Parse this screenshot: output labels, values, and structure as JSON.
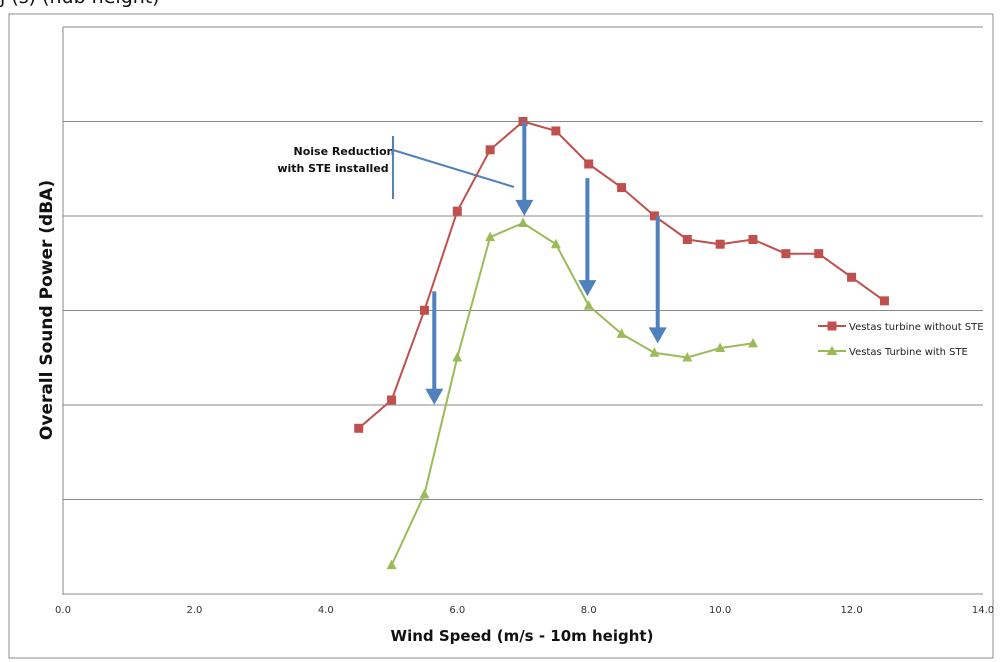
{
  "header_fragment": "j                                                             (s) (hub height)",
  "chart_data": {
    "type": "line",
    "title": "",
    "xlabel": "Wind Speed  (m/s - 10m height)",
    "ylabel": "Overall Sound Power (dBA)",
    "xlim": [
      0,
      14
    ],
    "ylim": [
      0,
      10
    ],
    "x_ticks": [
      "0.0",
      "2.0",
      "4.0",
      "6.0",
      "8.0",
      "10.0",
      "12.0",
      "14.0"
    ],
    "y_tick_labels_shown": false,
    "grid": "horizontal",
    "legend_position": "right",
    "series": [
      {
        "name": "Vestas turbine without STE",
        "color": "#c0504d",
        "marker": "square",
        "x": [
          4.5,
          5.0,
          5.5,
          6.0,
          6.5,
          7.0,
          7.5,
          8.0,
          8.5,
          9.0,
          9.5,
          10.0,
          10.5,
          11.0,
          11.5,
          12.0,
          12.5
        ],
        "y": [
          3.5,
          4.1,
          6.0,
          8.1,
          9.4,
          10.0,
          9.8,
          9.1,
          8.6,
          8.0,
          7.5,
          7.4,
          7.5,
          7.2,
          7.2,
          6.7,
          6.2
        ]
      },
      {
        "name": "Vestas Turbine with STE",
        "color": "#9bbb59",
        "marker": "triangle",
        "x": [
          5.0,
          5.5,
          6.0,
          6.5,
          7.0,
          7.5,
          8.0,
          8.5,
          9.0,
          9.5,
          10.0,
          10.5
        ],
        "y": [
          0.6,
          2.1,
          5.0,
          7.55,
          7.85,
          7.4,
          6.1,
          5.5,
          5.1,
          5.0,
          5.2,
          5.3
        ]
      }
    ],
    "annotation": {
      "lines": [
        "Noise Reduction",
        "with STE installed"
      ]
    },
    "reduction_arrows": [
      {
        "x": 5.65,
        "from_y": 6.4,
        "to_y": 4.0
      },
      {
        "x": 7.02,
        "from_y": 10.0,
        "to_y": 8.0
      },
      {
        "x": 7.98,
        "from_y": 8.8,
        "to_y": 6.3
      },
      {
        "x": 9.05,
        "from_y": 8.0,
        "to_y": 5.3
      }
    ]
  }
}
